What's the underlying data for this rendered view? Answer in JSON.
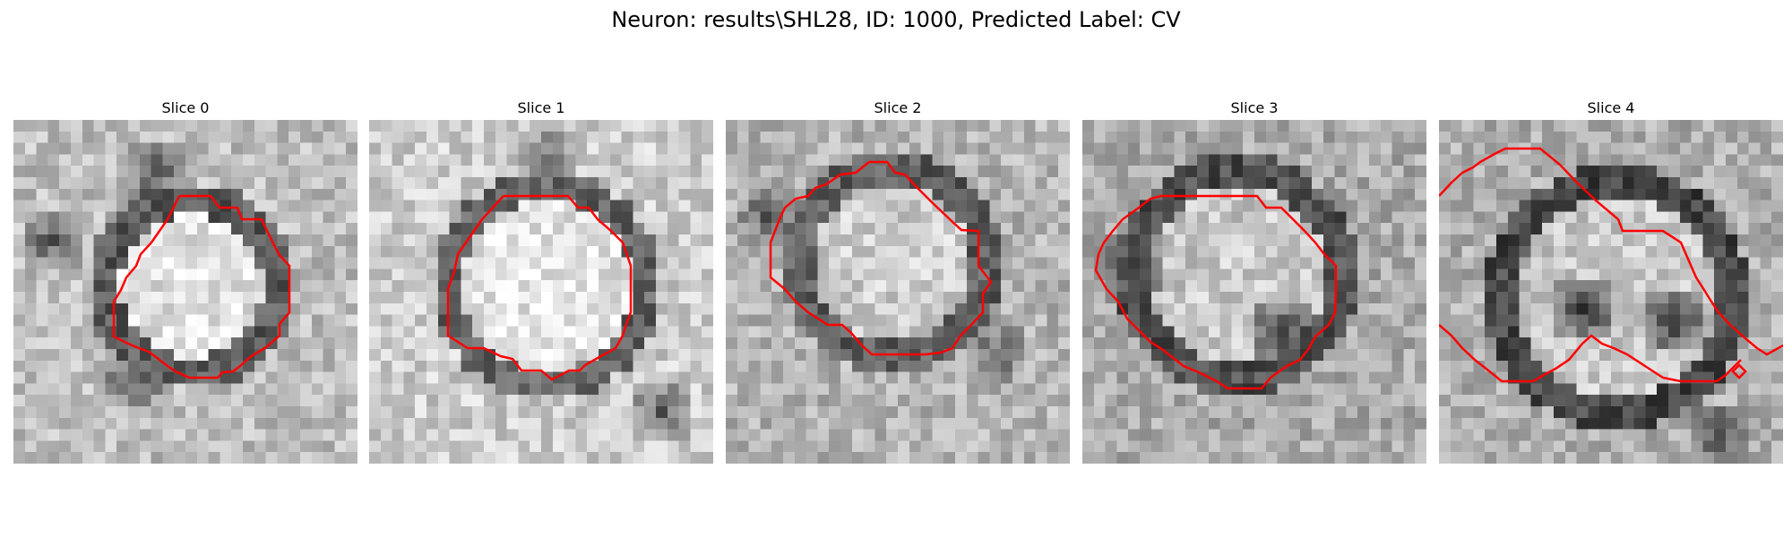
{
  "figure": {
    "title": "Neuron: results\\SHL28, ID: 1000, Predicted Label: CV"
  },
  "colors": {
    "contour": "#ff0000",
    "background": "#ffffff"
  },
  "slices": [
    {
      "title": "Slice 0"
    },
    {
      "title": "Slice 1"
    },
    {
      "title": "Slice 2"
    },
    {
      "title": "Slice 3"
    },
    {
      "title": "Slice 4"
    }
  ]
}
